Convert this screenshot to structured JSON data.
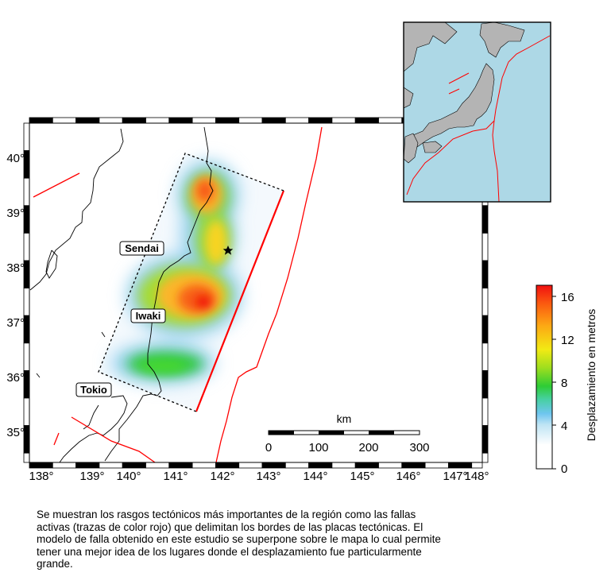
{
  "map": {
    "lon_ticks": [
      "138°",
      "139°",
      "140°",
      "141°",
      "142°",
      "143°",
      "144°",
      "145°",
      "146°",
      "147°",
      "148°"
    ],
    "lat_ticks": [
      "35°",
      "36°",
      "37°",
      "38°",
      "39°",
      "40°"
    ],
    "cities": [
      {
        "name": "Sendai"
      },
      {
        "name": "Iwaki"
      },
      {
        "name": "Tokio"
      }
    ],
    "scalebar": {
      "unit": "km",
      "ticks": [
        "0",
        "100",
        "200",
        "300"
      ]
    }
  },
  "colorbar": {
    "label": "Desplazamiento en metros",
    "ticks": [
      "0",
      "4",
      "8",
      "12",
      "16"
    ]
  },
  "colors": {
    "fault": "#ff0000",
    "ocean_inset": "#add8e6",
    "land_inset": "#b4b4b4"
  },
  "caption": {
    "lines": [
      "Se muestran los rasgos tectónicos más importantes de la región como las fallas",
      "activas (trazas de color rojo) que delimitan los bordes de las placas tectónicas.  El",
      "modelo de falla obtenido en este estudio se superpone sobre le mapa lo cual permite",
      "tener una mejor idea de los lugares donde el desplazamiento fue particularmente",
      "grande."
    ]
  }
}
